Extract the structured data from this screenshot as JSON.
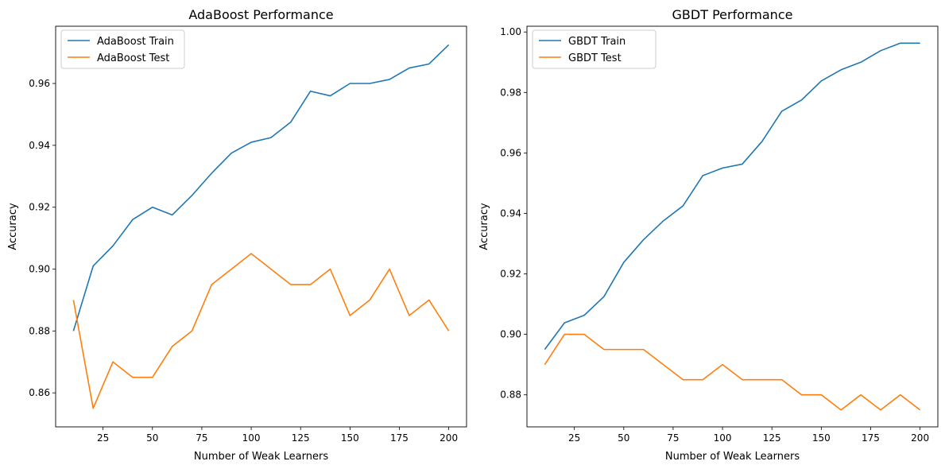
{
  "chart_data": [
    {
      "type": "line",
      "title": "AdaBoost Performance",
      "xlabel": "Number of Weak Learners",
      "ylabel": "Accuracy",
      "x": [
        10,
        20,
        30,
        40,
        50,
        60,
        70,
        80,
        90,
        100,
        110,
        120,
        130,
        140,
        150,
        160,
        170,
        180,
        190,
        200
      ],
      "xlim": [
        1,
        209
      ],
      "ylim": [
        0.849,
        0.9785
      ],
      "xticks": [
        25,
        50,
        75,
        100,
        125,
        150,
        175,
        200
      ],
      "xtick_labels": [
        "25",
        "50",
        "75",
        "100",
        "125",
        "150",
        "175",
        "200"
      ],
      "yticks": [
        0.86,
        0.88,
        0.9,
        0.92,
        0.94,
        0.96
      ],
      "ytick_labels": [
        "0.86",
        "0.88",
        "0.90",
        "0.92",
        "0.94",
        "0.96"
      ],
      "grid": false,
      "legend_position": "top-left",
      "series": [
        {
          "name": "AdaBoost Train",
          "color": "#1f77b4",
          "values": [
            0.88,
            0.901,
            0.9075,
            0.916,
            0.92,
            0.9175,
            0.9238,
            0.931,
            0.9375,
            0.941,
            0.9425,
            0.9475,
            0.9575,
            0.956,
            0.96,
            0.96,
            0.9613,
            0.965,
            0.9663,
            0.9725
          ]
        },
        {
          "name": "AdaBoost Test",
          "color": "#ff7f0e",
          "values": [
            0.89,
            0.855,
            0.87,
            0.865,
            0.865,
            0.875,
            0.88,
            0.895,
            0.9,
            0.905,
            0.9,
            0.895,
            0.895,
            0.9,
            0.885,
            0.89,
            0.9,
            0.885,
            0.89,
            0.88
          ]
        }
      ]
    },
    {
      "type": "line",
      "title": "GBDT Performance",
      "xlabel": "Number of Weak Learners",
      "ylabel": "Accuracy",
      "x": [
        10,
        20,
        30,
        40,
        50,
        60,
        70,
        80,
        90,
        100,
        110,
        120,
        130,
        140,
        150,
        160,
        170,
        180,
        190,
        200
      ],
      "xlim": [
        1,
        209
      ],
      "ylim": [
        0.8694,
        1.0019
      ],
      "xticks": [
        25,
        50,
        75,
        100,
        125,
        150,
        175,
        200
      ],
      "xtick_labels": [
        "25",
        "50",
        "75",
        "100",
        "125",
        "150",
        "175",
        "200"
      ],
      "yticks": [
        0.88,
        0.9,
        0.92,
        0.94,
        0.96,
        0.98,
        1.0
      ],
      "ytick_labels": [
        "0.88",
        "0.90",
        "0.92",
        "0.94",
        "0.96",
        "0.98",
        "1.00"
      ],
      "grid": false,
      "legend_position": "top-left",
      "series": [
        {
          "name": "GBDT Train",
          "color": "#1f77b4",
          "values": [
            0.895,
            0.9038,
            0.9063,
            0.9125,
            0.9238,
            0.9313,
            0.9375,
            0.9425,
            0.9525,
            0.955,
            0.9563,
            0.9638,
            0.9738,
            0.9775,
            0.9838,
            0.9875,
            0.99,
            0.9938,
            0.9963,
            0.9963
          ]
        },
        {
          "name": "GBDT Test",
          "color": "#ff7f0e",
          "values": [
            0.89,
            0.9,
            0.9,
            0.895,
            0.895,
            0.895,
            0.89,
            0.885,
            0.885,
            0.89,
            0.885,
            0.885,
            0.885,
            0.88,
            0.88,
            0.875,
            0.88,
            0.875,
            0.88,
            0.875
          ]
        }
      ]
    }
  ]
}
